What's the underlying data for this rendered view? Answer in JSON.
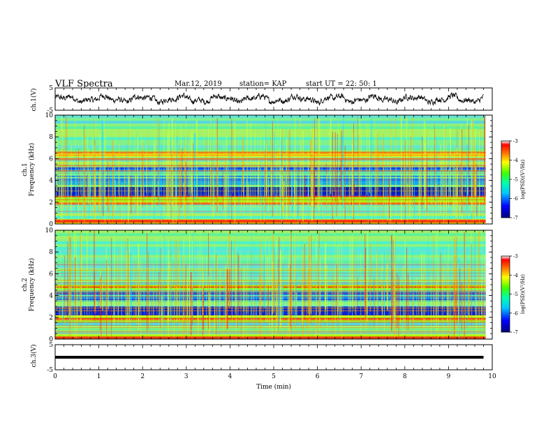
{
  "header": {
    "title": "VLF Spectra",
    "date": "Mar.12, 2019",
    "station": "station= KAP",
    "start": "start  UT =   22: 50: 1"
  },
  "panels": {
    "ch1_wave_label": "ch.1(V)",
    "ch1_spec_label_a": "ch.1",
    "ch1_spec_label_b": "Frequency (kHz)",
    "ch2_spec_label_a": "ch.2",
    "ch2_spec_label_b": "Frequency (kHz)",
    "ch3_wave_label": "ch.3(V)",
    "xlabel": "Time (min)",
    "colorbar_label": "log(PSD)(V²/Hz)"
  },
  "colors": {
    "spec_background": "#7fe0c8",
    "wave": "#000000"
  },
  "chart_data": [
    {
      "type": "line",
      "name": "ch1-waveform",
      "ylabel": "ch.1(V)",
      "ylim": [
        -5,
        5
      ],
      "yticks": [
        -5,
        5
      ],
      "xlim": [
        0,
        10
      ],
      "xticks": [
        0,
        1,
        2,
        3,
        4,
        5,
        6,
        7,
        8,
        9,
        10
      ],
      "data_xrange": [
        0,
        9.8
      ],
      "approx_amplitude": 2
    },
    {
      "type": "heatmap",
      "name": "ch1-spectrogram",
      "ylabel": "Frequency (kHz)",
      "ylim": [
        0,
        10
      ],
      "yticks": [
        0,
        2,
        4,
        6,
        8,
        10
      ],
      "xlim": [
        0,
        10
      ],
      "colorbar": {
        "label": "log(PSD)(V²/Hz)",
        "range": [
          -7,
          -3
        ],
        "ticks": [
          -3,
          -4,
          -5,
          -6,
          -7
        ]
      },
      "bands_khz": [
        {
          "from": 0,
          "to": 0.4,
          "level": "high"
        },
        {
          "from": 1.8,
          "to": 2.6,
          "level": "high"
        },
        {
          "from": 2.6,
          "to": 3.4,
          "level": "very-low"
        },
        {
          "from": 3.6,
          "to": 5.2,
          "level": "low"
        },
        {
          "from": 6.2,
          "to": 6.6,
          "level": "high"
        }
      ]
    },
    {
      "type": "heatmap",
      "name": "ch2-spectrogram",
      "ylabel": "Frequency (kHz)",
      "ylim": [
        0,
        10
      ],
      "yticks": [
        0,
        2,
        4,
        6,
        8,
        10
      ],
      "xlim": [
        0,
        10
      ],
      "colorbar": {
        "label": "log(PSD)(V²/Hz)",
        "range": [
          -7,
          -3
        ],
        "ticks": [
          -3,
          -4,
          -5,
          -6,
          -7
        ]
      },
      "bands_khz": [
        {
          "from": 0,
          "to": 0.4,
          "level": "high"
        },
        {
          "from": 1.6,
          "to": 2.2,
          "level": "high"
        },
        {
          "from": 2.2,
          "to": 3.0,
          "level": "very-low"
        },
        {
          "from": 3.5,
          "to": 4.4,
          "level": "low"
        },
        {
          "from": 4.6,
          "to": 5.0,
          "level": "high"
        }
      ]
    },
    {
      "type": "line",
      "name": "ch3-waveform",
      "ylabel": "ch.3(V)",
      "ylim": [
        -5,
        5
      ],
      "yticks": [
        -5,
        5
      ],
      "xlim": [
        0,
        10
      ],
      "xticks": [
        0,
        1,
        2,
        3,
        4,
        5,
        6,
        7,
        8,
        9,
        10
      ],
      "xlabel": "Time (min)",
      "data_xrange": [
        0,
        9.8
      ],
      "constant_value": 0
    }
  ]
}
